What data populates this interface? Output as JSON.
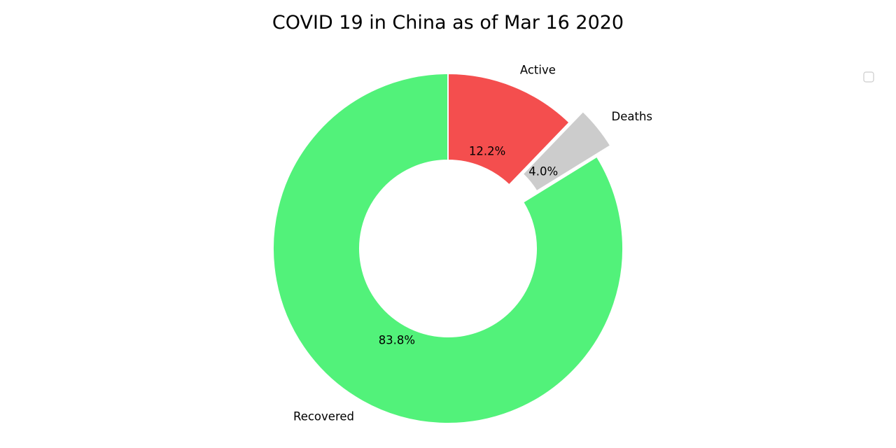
{
  "chart_data": {
    "type": "pie",
    "title": "COVID 19 in China as of Mar 16 2020",
    "categories": [
      "Active",
      "Deaths",
      "Recovered"
    ],
    "values": [
      12.2,
      4.0,
      83.8
    ],
    "value_labels": [
      "12.2%",
      "4.0%",
      "83.8%"
    ],
    "colors": [
      "#f44e4e",
      "#cccccc",
      "#52f27a"
    ],
    "exploded": [
      "Deaths"
    ],
    "donut": true,
    "start_angle": 90,
    "direction": "clockwise",
    "legend": "upper-right, empty"
  }
}
